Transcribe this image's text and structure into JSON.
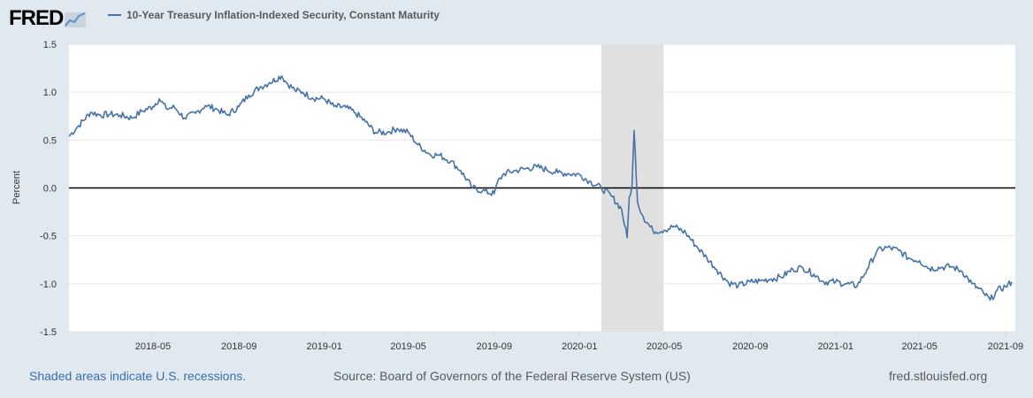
{
  "brand": {
    "logo_text": "FRED"
  },
  "legend": {
    "series_label": "10-Year Treasury Inflation-Indexed Security, Constant Maturity",
    "color": "#4572a7"
  },
  "footer": {
    "recession_note": "Shaded areas indicate U.S. recessions.",
    "source": "Source: Board of Governors of the Federal Reserve System (US)",
    "site": "fred.stlouisfed.org"
  },
  "chart_data": {
    "type": "line",
    "ylabel": "Percent",
    "ylim": [
      -1.5,
      1.5
    ],
    "yticks": [
      "1.5",
      "1.0",
      "0.5",
      "0.0",
      "-0.5",
      "-1.0",
      "-1.5"
    ],
    "xlim": [
      "2018-01-01",
      "2021-09-15"
    ],
    "xticks": [
      "2018-05",
      "2018-09",
      "2019-01",
      "2019-05",
      "2019-09",
      "2020-01",
      "2020-05",
      "2020-09",
      "2021-01",
      "2021-05",
      "2021-09"
    ],
    "recession": {
      "start": "2020-02-01",
      "end": "2020-04-30",
      "color": "#e0e0e0"
    },
    "zero_line": true,
    "grid": true,
    "series": [
      {
        "color": "#4572a7",
        "x": [
          "2018-01-01",
          "2018-01-15",
          "2018-02-01",
          "2018-02-15",
          "2018-03-01",
          "2018-03-15",
          "2018-04-01",
          "2018-04-15",
          "2018-05-01",
          "2018-05-10",
          "2018-05-20",
          "2018-06-01",
          "2018-06-15",
          "2018-07-01",
          "2018-07-15",
          "2018-08-01",
          "2018-08-15",
          "2018-09-01",
          "2018-09-15",
          "2018-10-01",
          "2018-10-15",
          "2018-11-01",
          "2018-11-08",
          "2018-11-20",
          "2018-12-01",
          "2018-12-15",
          "2019-01-01",
          "2019-01-15",
          "2019-02-01",
          "2019-02-15",
          "2019-03-01",
          "2019-03-15",
          "2019-04-01",
          "2019-04-15",
          "2019-05-01",
          "2019-05-15",
          "2019-06-01",
          "2019-06-15",
          "2019-07-01",
          "2019-07-15",
          "2019-08-01",
          "2019-08-15",
          "2019-09-01",
          "2019-09-05",
          "2019-09-15",
          "2019-10-01",
          "2019-10-15",
          "2019-11-01",
          "2019-11-15",
          "2019-12-01",
          "2019-12-15",
          "2020-01-01",
          "2020-01-15",
          "2020-02-01",
          "2020-02-15",
          "2020-03-01",
          "2020-03-09",
          "2020-03-12",
          "2020-03-16",
          "2020-03-19",
          "2020-03-24",
          "2020-04-01",
          "2020-04-15",
          "2020-05-01",
          "2020-05-15",
          "2020-06-01",
          "2020-06-15",
          "2020-07-01",
          "2020-07-15",
          "2020-08-01",
          "2020-08-15",
          "2020-09-01",
          "2020-09-15",
          "2020-10-01",
          "2020-10-15",
          "2020-11-01",
          "2020-11-15",
          "2020-12-01",
          "2020-12-15",
          "2021-01-01",
          "2021-01-15",
          "2021-02-01",
          "2021-02-15",
          "2021-03-01",
          "2021-03-15",
          "2021-04-01",
          "2021-04-15",
          "2021-05-01",
          "2021-05-15",
          "2021-06-01",
          "2021-06-15",
          "2021-07-01",
          "2021-07-15",
          "2021-08-01",
          "2021-08-10",
          "2021-08-20",
          "2021-09-01",
          "2021-09-10"
        ],
        "y": [
          0.54,
          0.65,
          0.79,
          0.76,
          0.77,
          0.76,
          0.73,
          0.8,
          0.85,
          0.93,
          0.83,
          0.84,
          0.73,
          0.78,
          0.86,
          0.82,
          0.76,
          0.85,
          0.97,
          1.05,
          1.1,
          1.17,
          1.1,
          1.02,
          1.0,
          0.94,
          0.93,
          0.85,
          0.84,
          0.78,
          0.69,
          0.58,
          0.58,
          0.62,
          0.58,
          0.45,
          0.35,
          0.34,
          0.28,
          0.18,
          0.0,
          -0.03,
          -0.06,
          0.05,
          0.15,
          0.18,
          0.2,
          0.22,
          0.19,
          0.16,
          0.15,
          0.14,
          0.07,
          0.0,
          -0.08,
          -0.22,
          -0.52,
          -0.1,
          0.02,
          0.6,
          -0.15,
          -0.3,
          -0.45,
          -0.44,
          -0.4,
          -0.47,
          -0.6,
          -0.73,
          -0.85,
          -0.99,
          -1.02,
          -0.98,
          -0.97,
          -0.95,
          -0.93,
          -0.85,
          -0.83,
          -0.9,
          -0.98,
          -0.98,
          -1.0,
          -1.02,
          -0.85,
          -0.66,
          -0.62,
          -0.65,
          -0.73,
          -0.76,
          -0.84,
          -0.83,
          -0.82,
          -0.87,
          -1.0,
          -1.1,
          -1.17,
          -1.07,
          -1.03,
          -0.98
        ]
      }
    ]
  }
}
